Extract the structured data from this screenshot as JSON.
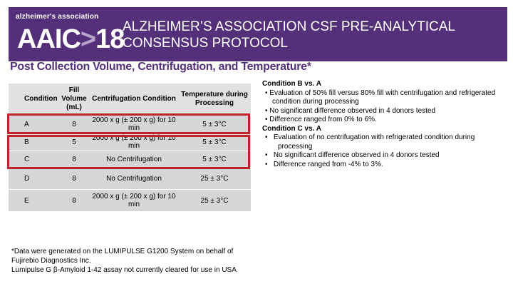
{
  "header": {
    "logo_top": "alzheimer's association",
    "logo_main": "AAIC",
    "logo_year": "18",
    "title": "ALZHEIMER’S ASSOCIATION CSF PRE-ANALYTICAL CONSENSUS PROTOCOL"
  },
  "subtitle": "Post Collection Volume, Centrifugation, and Temperature*",
  "table": {
    "headers": [
      "Condition",
      "Fill Volume (mL)",
      "Centrifugation Condition",
      "Temperature during Processing"
    ],
    "rows": [
      [
        "A",
        "8",
        "2000 x g (± 200 x g) for 10 min",
        "5 ± 3°C"
      ],
      [
        "B",
        "5",
        "2000 x g (± 200 x g) for 10 min",
        "5 ± 3°C"
      ],
      [
        "C",
        "8",
        "No Centrifugation",
        "5 ± 3°C"
      ],
      [
        "D",
        "8",
        "No Centrifugation",
        "25 ± 3°C"
      ],
      [
        "E",
        "8",
        "2000 x g (± 200 x g) for 10 min",
        "25 ± 3°C"
      ]
    ]
  },
  "footnote": {
    "line1": "*Data were generated on the LUMIPULSE G1200 System on behalf of",
    "line2": "Fujirebio Diagnostics Inc.",
    "line3": "Lumipulse G β-Amyloid 1-42 assay not currently cleared for use in USA"
  },
  "notes": {
    "b_heading": "Condition B vs. A",
    "b_items": [
      "Evaluation of 50% fill versus 80% fill with centrifugation and refrigerated condition during processing",
      "No significant difference observed in 4 donors tested",
      "Difference ranged from 0% to 6%."
    ],
    "c_heading": "Condition C vs. A",
    "c_items": [
      "Evaluation of no centrifugation with refrigerated condition during processing",
      "No significant difference observed in 4 donors tested",
      "Difference ranged from -4% to 3%."
    ],
    "bullet": "•"
  },
  "colors": {
    "header_bg": "#55307a",
    "highlight": "#c0232b",
    "table_cell": "#d6d6d6"
  }
}
